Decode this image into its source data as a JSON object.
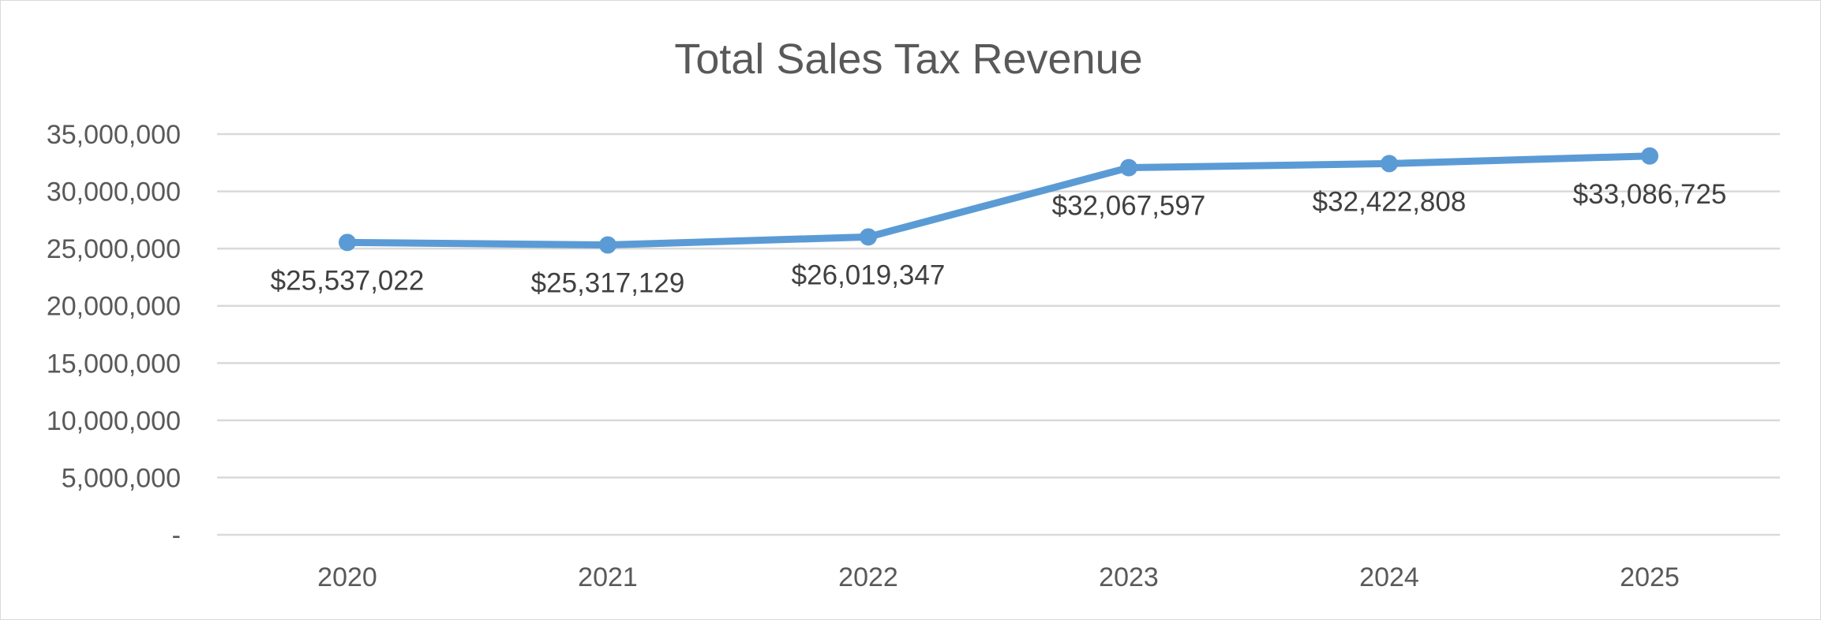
{
  "chart_data": {
    "type": "line",
    "title": "Total Sales Tax Revenue",
    "xlabel": "",
    "ylabel": "",
    "categories": [
      "2020",
      "2021",
      "2022",
      "2023",
      "2024",
      "2025"
    ],
    "series": [
      {
        "values": [
          25537022,
          25317129,
          26019347,
          32067597,
          32422808,
          33086725
        ],
        "data_labels": [
          "$25,537,022",
          "$25,317,129",
          "$26,019,347",
          "$32,067,597",
          "$32,422,808",
          "$33,086,725"
        ],
        "color": "#5b9bd5",
        "marker": "circle"
      }
    ],
    "ylim": [
      0,
      35000000
    ],
    "y_ticks": [
      0,
      5000000,
      10000000,
      15000000,
      20000000,
      25000000,
      30000000,
      35000000
    ],
    "y_tick_labels": [
      "-",
      "5,000,000",
      "10,000,000",
      "15,000,000",
      "20,000,000",
      "25,000,000",
      "30,000,000",
      "35,000,000"
    ],
    "grid": "horizontal",
    "legend": "none",
    "colors": {
      "gridline": "#d9d9d9",
      "text": "#595959",
      "border": "#d9d9d9"
    }
  }
}
